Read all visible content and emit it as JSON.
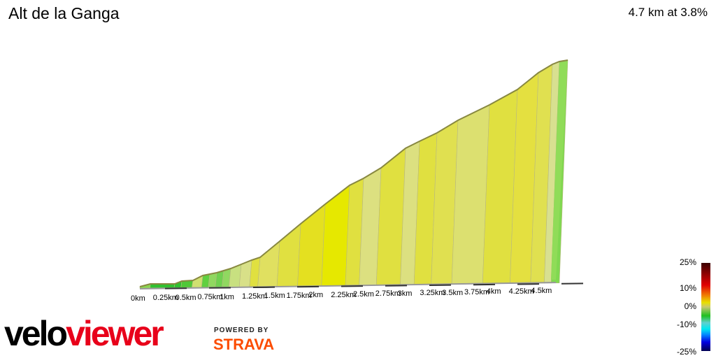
{
  "header": {
    "title": "Alt de la Ganga",
    "summary": "4.7 km at 3.8%"
  },
  "distance_labels": [
    "0km",
    "0.25km",
    "0.5km",
    "0.75km",
    "1km",
    "1.25km",
    "1.5km",
    "1.75km",
    "2km",
    "2.25km",
    "2.5km",
    "2.75km",
    "3km",
    "3.25km",
    "3.5km",
    "3.75km",
    "4km",
    "4.25km",
    "4.5km"
  ],
  "legend": {
    "labels": [
      "25%",
      "10%",
      "0%",
      "-10%",
      "-25%"
    ]
  },
  "branding": {
    "logo_velo": "velo",
    "logo_viewer": "viewer",
    "powered_by": "POWERED BY",
    "strava": "STRAVA"
  }
}
